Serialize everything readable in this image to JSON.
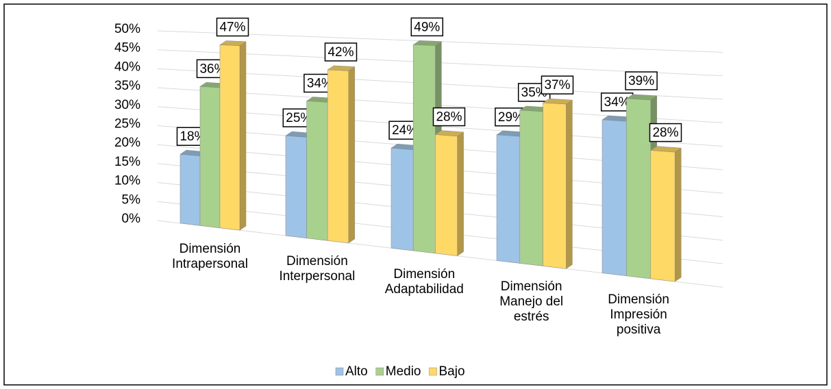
{
  "chart_data": {
    "type": "bar",
    "categories": [
      "Dimensión\nIntrapersonal",
      "Dimensión\nInterpersonal",
      "Dimensión\nAdaptabilidad",
      "Dimensión\nManejo del\nestrés",
      "Dimensión\nImpresión\npositiva"
    ],
    "series": [
      {
        "name": "Alto",
        "color": "#9dc3e6",
        "values": [
          18,
          25,
          24,
          29,
          34
        ],
        "value_labels": [
          "18%",
          "25%",
          "24%",
          "29%",
          "34%"
        ]
      },
      {
        "name": "Medio",
        "color": "#a9d18e",
        "values": [
          36,
          34,
          49,
          35,
          39
        ],
        "value_labels": [
          "36%",
          "34%",
          "49%",
          "35%",
          "39%"
        ]
      },
      {
        "name": "Bajo",
        "color": "#ffd966",
        "values": [
          47,
          42,
          28,
          37,
          28
        ],
        "value_labels": [
          "47%",
          "42%",
          "28%",
          "37%",
          "28%"
        ]
      }
    ],
    "ylim": [
      0,
      50
    ],
    "yticks": [
      {
        "value": 0,
        "label": "0%"
      },
      {
        "value": 5,
        "label": "5%"
      },
      {
        "value": 10,
        "label": "10%"
      },
      {
        "value": 15,
        "label": "15%"
      },
      {
        "value": 20,
        "label": "20%"
      },
      {
        "value": 25,
        "label": "25%"
      },
      {
        "value": 30,
        "label": "30%"
      },
      {
        "value": 35,
        "label": "35%"
      },
      {
        "value": 40,
        "label": "40%"
      },
      {
        "value": 45,
        "label": "45%"
      },
      {
        "value": 50,
        "label": "50%"
      }
    ],
    "grid": true,
    "legend": "bottom"
  }
}
